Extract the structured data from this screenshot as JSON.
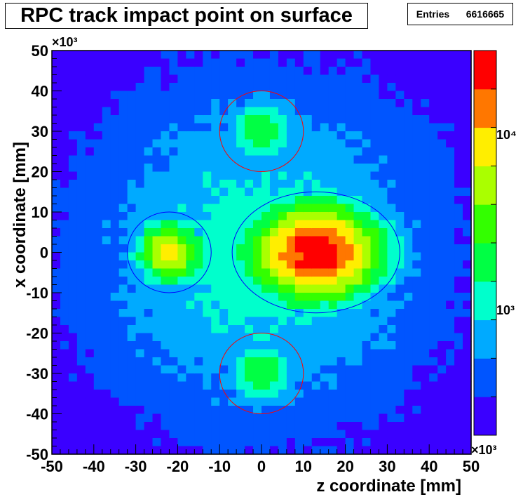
{
  "title": "RPC track impact point on surface",
  "stats": {
    "label": "Entries",
    "value": "6616665"
  },
  "chart_data": {
    "type": "heatmap",
    "title": "RPC track impact point on surface",
    "xlabel": "z coordinate [mm]",
    "ylabel": "x coordinate [mm]",
    "xlim": [
      -50000,
      50000
    ],
    "ylim": [
      -50000,
      50000
    ],
    "axis_multiplier": "×10³",
    "x_ticks": [
      "-50",
      "-40",
      "-30",
      "-20",
      "-10",
      "0",
      "10",
      "20",
      "30",
      "40",
      "50"
    ],
    "y_ticks": [
      "50",
      "40",
      "30",
      "20",
      "10",
      "0",
      "-10",
      "-20",
      "-30",
      "-40",
      "-50"
    ],
    "colorbar": {
      "scale": "log",
      "labels": [
        "10³",
        "10⁴",
        "×10³"
      ],
      "colors": [
        "#3a00ff",
        "#0055ff",
        "#00aaff",
        "#00ffcc",
        "#00ff44",
        "#33ff00",
        "#aaff00",
        "#ffee00",
        "#ff7700",
        "#ff0000"
      ]
    },
    "regions": [
      {
        "shape": "ellipse",
        "cx": 13000,
        "cy": 0,
        "rx": 20000,
        "ry": 15000,
        "level": 0.97
      },
      {
        "shape": "ellipse",
        "cx": -22000,
        "cy": 0,
        "rx": 10000,
        "ry": 10000,
        "level": 0.73
      },
      {
        "shape": "circle",
        "cx": 0,
        "cy": 30000,
        "r": 10000,
        "level": 0.48
      },
      {
        "shape": "circle",
        "cx": 0,
        "cy": -30000,
        "r": 10000,
        "level": 0.48
      }
    ],
    "overlay_circles": [
      {
        "cx": 0,
        "cy": 30000,
        "rx": 10000,
        "ry": 10000,
        "color": "#ff0000"
      },
      {
        "cx": 0,
        "cy": -30000,
        "rx": 10000,
        "ry": 10000,
        "color": "#ff0000"
      },
      {
        "cx": -22000,
        "cy": 0,
        "rx": 10000,
        "ry": 10000,
        "color": "#0000ff"
      },
      {
        "cx": 13000,
        "cy": 0,
        "rx": 20000,
        "ry": 15000,
        "color": "#0000ff"
      }
    ],
    "grid": false,
    "legend": "none"
  }
}
